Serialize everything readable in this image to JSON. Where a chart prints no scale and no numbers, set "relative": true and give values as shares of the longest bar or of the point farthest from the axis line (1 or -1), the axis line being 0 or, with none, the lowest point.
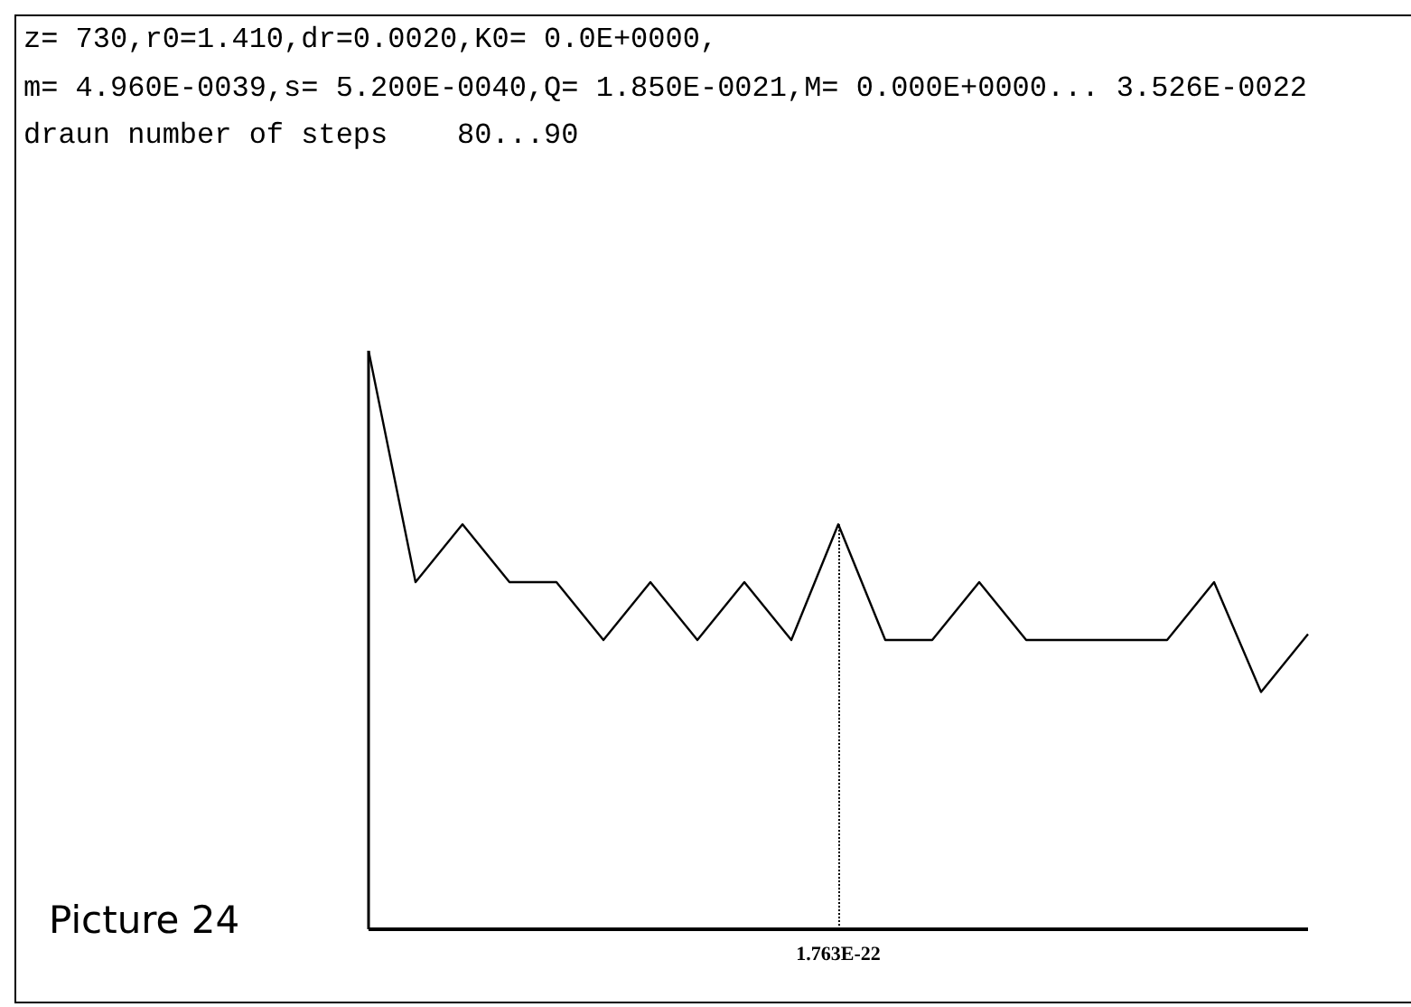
{
  "chart_data": {
    "type": "line",
    "title": "z= 730,r0=1.410,dr=0.0020,K0= 0.0E+0000,",
    "subtitle": "m= 4.960E-0039,s= 5.200E-0040,Q= 1.850E-0021,M= 0.000E+0000... 3.526E-0022",
    "annotations": [
      "draun number of steps    80...90",
      "Picture 24",
      "1.763E-22"
    ],
    "relative": true,
    "categories": [
      null,
      null,
      null,
      null,
      null,
      null,
      null,
      null,
      null,
      null,
      null,
      null,
      null,
      null,
      null,
      null,
      null,
      null,
      null,
      null,
      null
    ],
    "series": [
      {
        "color": "#000000",
        "values": [
          1,
          0.6,
          0.7,
          0.6,
          0.6,
          0.5,
          0.6,
          0.5,
          0.6,
          0.5,
          0.7,
          0.5,
          0.5,
          0.6,
          0.5,
          0.5,
          0.5,
          0.5,
          0.6,
          0.41,
          0.51
        ]
      }
    ]
  }
}
